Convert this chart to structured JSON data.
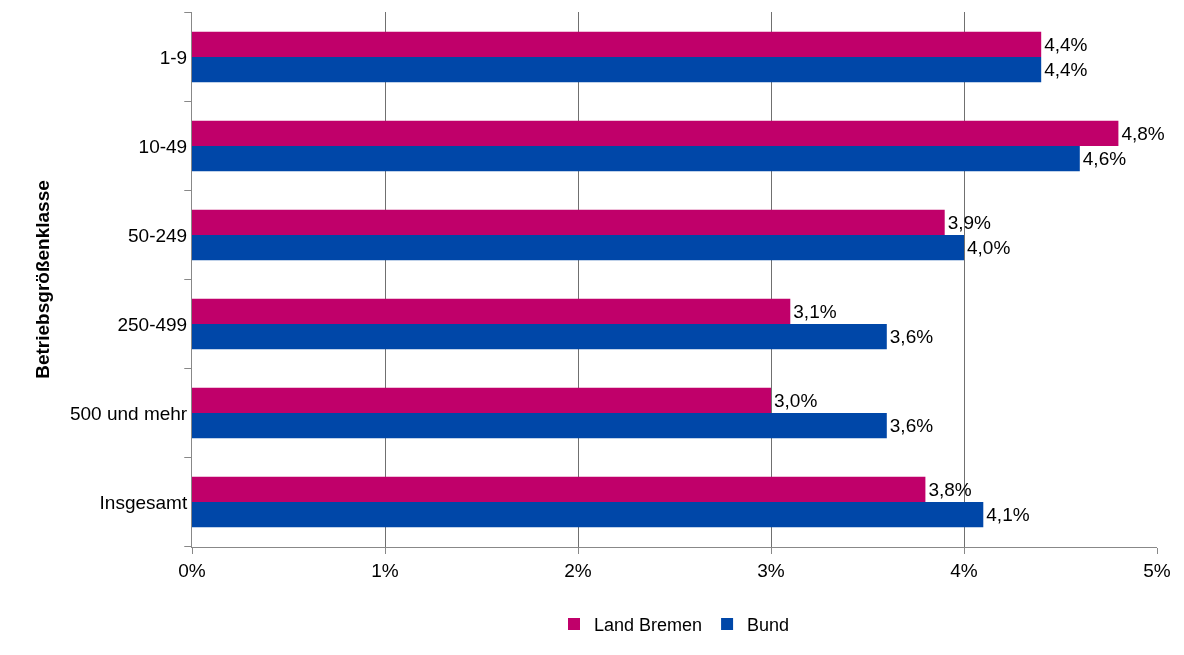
{
  "chart_data": {
    "type": "bar",
    "orientation": "horizontal",
    "ylabel": "Betriebsgrößenklasse",
    "categories": [
      "1-9",
      "10-49",
      "50-249",
      "250-499",
      "500 und mehr",
      "Insgesamt"
    ],
    "series": [
      {
        "name": "Land Bremen",
        "color": "#c0006a",
        "values": [
          4.4,
          4.8,
          3.9,
          3.1,
          3.0,
          3.8
        ],
        "value_labels": [
          "4,4%",
          "4,8%",
          "3,9%",
          "3,1%",
          "3,0%",
          "3,8%"
        ]
      },
      {
        "name": "Bund",
        "color": "#0047a8",
        "values": [
          4.4,
          4.6,
          4.0,
          3.6,
          3.6,
          4.1
        ],
        "value_labels": [
          "4,4%",
          "4,6%",
          "4,0%",
          "3,6%",
          "3,6%",
          "4,1%"
        ]
      }
    ],
    "xlim": [
      0,
      5
    ],
    "xticks": [
      {
        "value": 0,
        "label": "0%"
      },
      {
        "value": 1,
        "label": "1%"
      },
      {
        "value": 2,
        "label": "2%"
      },
      {
        "value": 3,
        "label": "3%"
      },
      {
        "value": 4,
        "label": "4%"
      },
      {
        "value": 5,
        "label": "5%"
      }
    ],
    "grid": "x",
    "legend": "bottom"
  }
}
